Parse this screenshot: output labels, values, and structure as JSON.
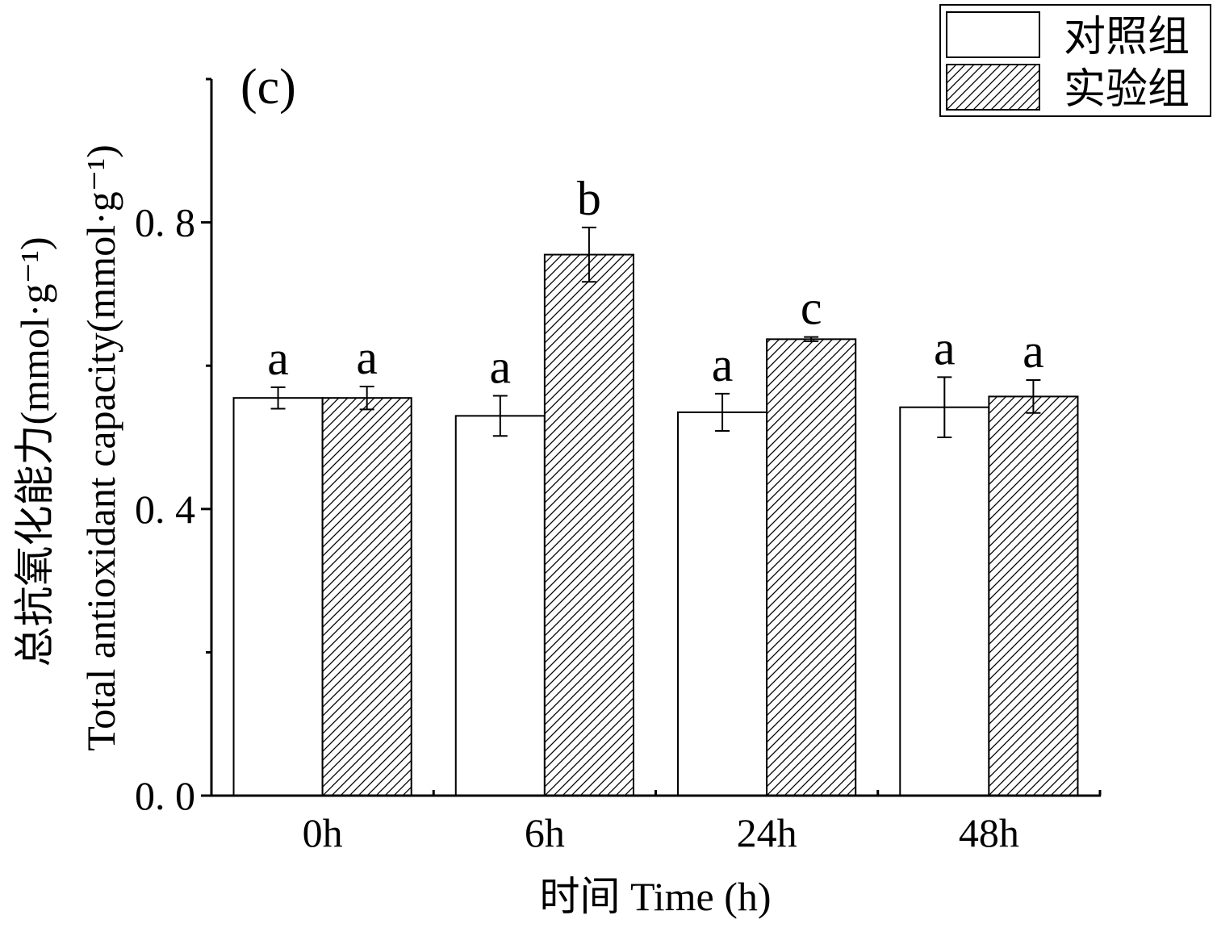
{
  "chart_data": {
    "type": "bar",
    "panel_label": "(c)",
    "categories": [
      "0h",
      "6h",
      "24h",
      "48h"
    ],
    "xlabel": "时间 Time (h)",
    "ylabel": "总抗氧化能力(mmol·g⁻¹)",
    "ylabel_en": "Total antioxidant capacity(mmol·g⁻¹)",
    "ylim": [
      0,
      1.0
    ],
    "yticks": [
      0.0,
      0.4,
      0.8
    ],
    "ytick_labels": [
      "0. 0",
      "0. 4",
      "0. 8"
    ],
    "ytick_minor": [
      0.2,
      0.6,
      1.0
    ],
    "legend_position": "top-right",
    "grid": false,
    "series": [
      {
        "name": "对照组",
        "pattern": "none",
        "values": [
          0.555,
          0.53,
          0.535,
          0.542
        ],
        "errors": [
          0.015,
          0.028,
          0.026,
          0.042
        ],
        "significance": [
          "a",
          "a",
          "a",
          "a"
        ]
      },
      {
        "name": "实验组",
        "pattern": "diagonal-hatch",
        "values": [
          0.555,
          0.755,
          0.637,
          0.557
        ],
        "errors": [
          0.016,
          0.038,
          0.003,
          0.023
        ],
        "significance": [
          "a",
          "b",
          "c",
          "a"
        ]
      }
    ]
  }
}
